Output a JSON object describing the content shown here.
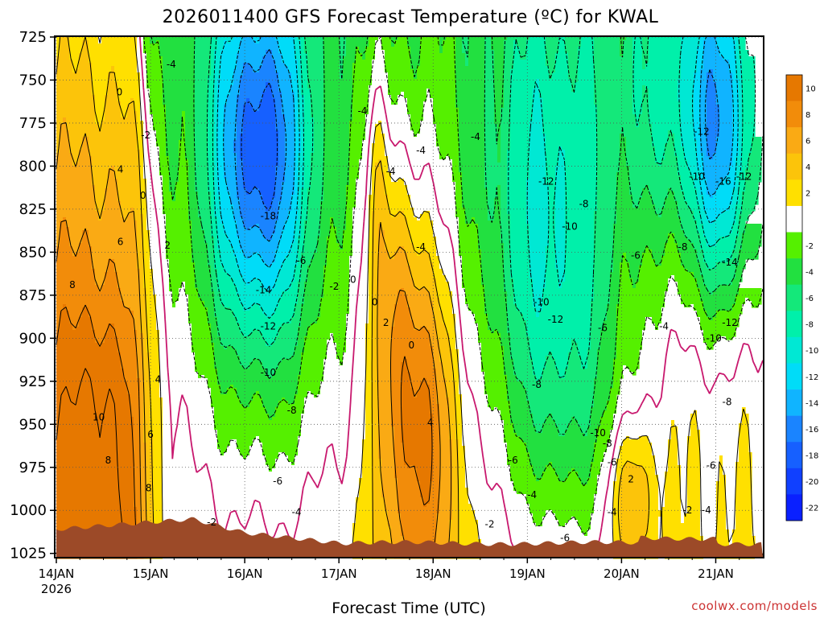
{
  "chart_data": {
    "type": "heatmap",
    "title": "2026011400 GFS Forecast Temperature (ºC) for KWAL",
    "xlabel": "Forecast Time (UTC)",
    "credit": "coolwx.com/models",
    "x_tick_labels": [
      "14JAN",
      "15JAN",
      "16JAN",
      "17JAN",
      "18JAN",
      "19JAN",
      "20JAN",
      "21JAN"
    ],
    "x_year_label": "2026",
    "y_tick_labels": [
      "725",
      "750",
      "775",
      "800",
      "825",
      "850",
      "875",
      "900",
      "925",
      "950",
      "975",
      "1000",
      "1025"
    ],
    "y_axis_values": [
      725,
      750,
      775,
      800,
      825,
      850,
      875,
      900,
      925,
      950,
      975,
      1000,
      1025
    ],
    "x_range_days": [
      0,
      7.5
    ],
    "y_range_hpa": [
      725,
      1027
    ],
    "grid": "on, dotted",
    "colorbar": {
      "placement": "right",
      "tick_labels": [
        "10",
        "8",
        "6",
        "4",
        "2",
        "-2",
        "-4",
        "-6",
        "-8",
        "-10",
        "-12",
        "-14",
        "-16",
        "-18",
        "-20",
        "-22"
      ],
      "bands": [
        {
          "lo": 10,
          "hi": 12,
          "color": "#e67800"
        },
        {
          "lo": 8,
          "hi": 10,
          "color": "#f28c0a"
        },
        {
          "lo": 6,
          "hi": 8,
          "color": "#faaa14"
        },
        {
          "lo": 4,
          "hi": 6,
          "color": "#fcc40a"
        },
        {
          "lo": 2,
          "hi": 4,
          "color": "#ffe000"
        },
        {
          "lo": -2,
          "hi": 2,
          "color": "#ffffff"
        },
        {
          "lo": -4,
          "hi": -2,
          "color": "#55f000"
        },
        {
          "lo": -6,
          "hi": -4,
          "color": "#22e040"
        },
        {
          "lo": -8,
          "hi": -6,
          "color": "#14e87a"
        },
        {
          "lo": -10,
          "hi": -8,
          "color": "#00f0aa"
        },
        {
          "lo": -12,
          "hi": -10,
          "color": "#00e8d4"
        },
        {
          "lo": -14,
          "hi": -12,
          "color": "#00dcf8"
        },
        {
          "lo": -16,
          "hi": -14,
          "color": "#10b4ff"
        },
        {
          "lo": -18,
          "hi": -16,
          "color": "#1a84ff"
        },
        {
          "lo": -20,
          "hi": -18,
          "color": "#1660ff"
        },
        {
          "lo": -22,
          "hi": -20,
          "color": "#1040ff"
        },
        {
          "lo": -24,
          "hi": -22,
          "color": "#0a20ff"
        }
      ]
    },
    "terrain_color": "#9c4a28",
    "freezing_line_color": "#c8186e",
    "contour_labels": [
      {
        "t": 0.67,
        "p": 757,
        "text": "0"
      },
      {
        "t": 1.22,
        "p": 741,
        "text": "-4"
      },
      {
        "t": 0.95,
        "p": 782,
        "text": "-2"
      },
      {
        "t": 0.68,
        "p": 802,
        "text": "4"
      },
      {
        "t": 0.92,
        "p": 817,
        "text": "0"
      },
      {
        "t": 0.68,
        "p": 844,
        "text": "6"
      },
      {
        "t": 1.18,
        "p": 846,
        "text": "2"
      },
      {
        "t": 0.17,
        "p": 869,
        "text": "8"
      },
      {
        "t": 1.08,
        "p": 924,
        "text": "4"
      },
      {
        "t": 0.45,
        "p": 946,
        "text": "10"
      },
      {
        "t": 0.55,
        "p": 971,
        "text": "8"
      },
      {
        "t": 1.0,
        "p": 956,
        "text": "6"
      },
      {
        "t": 0.98,
        "p": 987,
        "text": "8"
      },
      {
        "t": 1.65,
        "p": 1007,
        "text": "-2"
      },
      {
        "t": 2.25,
        "p": 829,
        "text": "-18"
      },
      {
        "t": 2.6,
        "p": 855,
        "text": "-6"
      },
      {
        "t": 2.2,
        "p": 872,
        "text": "-14"
      },
      {
        "t": 2.25,
        "p": 893,
        "text": "-12"
      },
      {
        "t": 2.25,
        "p": 920,
        "text": "-10"
      },
      {
        "t": 2.5,
        "p": 942,
        "text": "-8"
      },
      {
        "t": 2.35,
        "p": 983,
        "text": "-6"
      },
      {
        "t": 2.55,
        "p": 1001,
        "text": "-4"
      },
      {
        "t": 3.25,
        "p": 768,
        "text": "-4"
      },
      {
        "t": 3.15,
        "p": 866,
        "text": "0"
      },
      {
        "t": 2.95,
        "p": 870,
        "text": "-2"
      },
      {
        "t": 3.38,
        "p": 879,
        "text": "0"
      },
      {
        "t": 3.5,
        "p": 891,
        "text": "2"
      },
      {
        "t": 3.77,
        "p": 904,
        "text": "0"
      },
      {
        "t": 3.55,
        "p": 803,
        "text": "-4"
      },
      {
        "t": 3.87,
        "p": 791,
        "text": "-4"
      },
      {
        "t": 3.87,
        "p": 847,
        "text": "-4"
      },
      {
        "t": 3.97,
        "p": 949,
        "text": "4"
      },
      {
        "t": 4.45,
        "p": 783,
        "text": "-4"
      },
      {
        "t": 4.6,
        "p": 1008,
        "text": "-2"
      },
      {
        "t": 5.2,
        "p": 809,
        "text": "-12"
      },
      {
        "t": 5.6,
        "p": 822,
        "text": "-8"
      },
      {
        "t": 5.45,
        "p": 835,
        "text": "-10"
      },
      {
        "t": 5.15,
        "p": 879,
        "text": "-10"
      },
      {
        "t": 5.3,
        "p": 889,
        "text": "-12"
      },
      {
        "t": 5.8,
        "p": 894,
        "text": "-6"
      },
      {
        "t": 5.1,
        "p": 927,
        "text": "-8"
      },
      {
        "t": 4.85,
        "p": 971,
        "text": "-6"
      },
      {
        "t": 5.05,
        "p": 991,
        "text": "-4"
      },
      {
        "t": 5.75,
        "p": 955,
        "text": "-10"
      },
      {
        "t": 5.85,
        "p": 961,
        "text": "-8"
      },
      {
        "t": 5.9,
        "p": 972,
        "text": "-6"
      },
      {
        "t": 6.1,
        "p": 982,
        "text": "2"
      },
      {
        "t": 5.9,
        "p": 1001,
        "text": "-4"
      },
      {
        "t": 5.4,
        "p": 1016,
        "text": "-6"
      },
      {
        "t": 6.15,
        "p": 852,
        "text": "-6"
      },
      {
        "t": 6.45,
        "p": 893,
        "text": "-4"
      },
      {
        "t": 6.65,
        "p": 847,
        "text": "-8"
      },
      {
        "t": 6.85,
        "p": 780,
        "text": "-12"
      },
      {
        "t": 6.8,
        "p": 806,
        "text": "-10"
      },
      {
        "t": 7.08,
        "p": 809,
        "text": "-16"
      },
      {
        "t": 7.3,
        "p": 806,
        "text": "-12"
      },
      {
        "t": 7.15,
        "p": 856,
        "text": "-14"
      },
      {
        "t": 7.15,
        "p": 891,
        "text": "-12"
      },
      {
        "t": 6.98,
        "p": 900,
        "text": "-10"
      },
      {
        "t": 7.12,
        "p": 937,
        "text": "-8"
      },
      {
        "t": 6.95,
        "p": 974,
        "text": "-6"
      },
      {
        "t": 6.7,
        "p": 1000,
        "text": "-2"
      },
      {
        "t": 6.9,
        "p": 1000,
        "text": "-4"
      }
    ]
  }
}
